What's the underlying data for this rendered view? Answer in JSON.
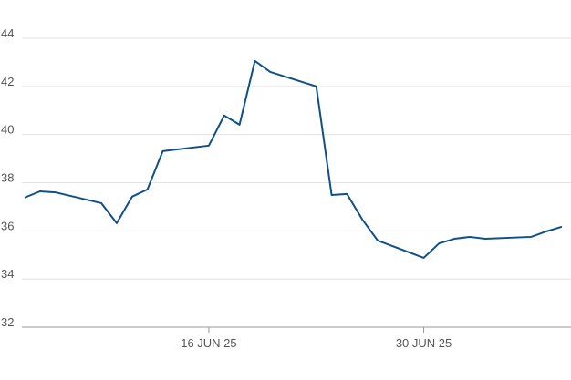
{
  "chart_data": {
    "type": "line",
    "x": [
      "2025-06-04",
      "2025-06-05",
      "2025-06-06",
      "2025-06-09",
      "2025-06-10",
      "2025-06-11",
      "2025-06-12",
      "2025-06-13",
      "2025-06-16",
      "2025-06-17",
      "2025-06-18",
      "2025-06-19",
      "2025-06-20",
      "2025-06-23",
      "2025-06-24",
      "2025-06-25",
      "2025-06-26",
      "2025-06-27",
      "2025-06-30",
      "2025-07-01",
      "2025-07-02",
      "2025-07-03",
      "2025-07-04",
      "2025-07-07",
      "2025-07-08",
      "2025-07-09"
    ],
    "series": [
      {
        "color": "#0f5089",
        "values": [
          37.38,
          37.64,
          37.6,
          37.15,
          36.32,
          37.42,
          37.72,
          39.31,
          39.54,
          40.79,
          40.41,
          43.06,
          42.6,
          42.0,
          37.49,
          37.53,
          36.47,
          35.6,
          34.88,
          35.48,
          35.67,
          35.75,
          35.67,
          35.75,
          35.98,
          36.17
        ]
      }
    ],
    "xlim": [
      "2025-06-04",
      "2025-07-09"
    ],
    "xticks": [
      {
        "value": "2025-06-16",
        "label": "16 JUN 25"
      },
      {
        "value": "2025-06-30",
        "label": "30 JUN 25"
      }
    ],
    "ylim": [
      32,
      44
    ],
    "yticks": [
      32,
      34,
      36,
      38,
      40,
      42,
      44
    ],
    "grid": true
  }
}
